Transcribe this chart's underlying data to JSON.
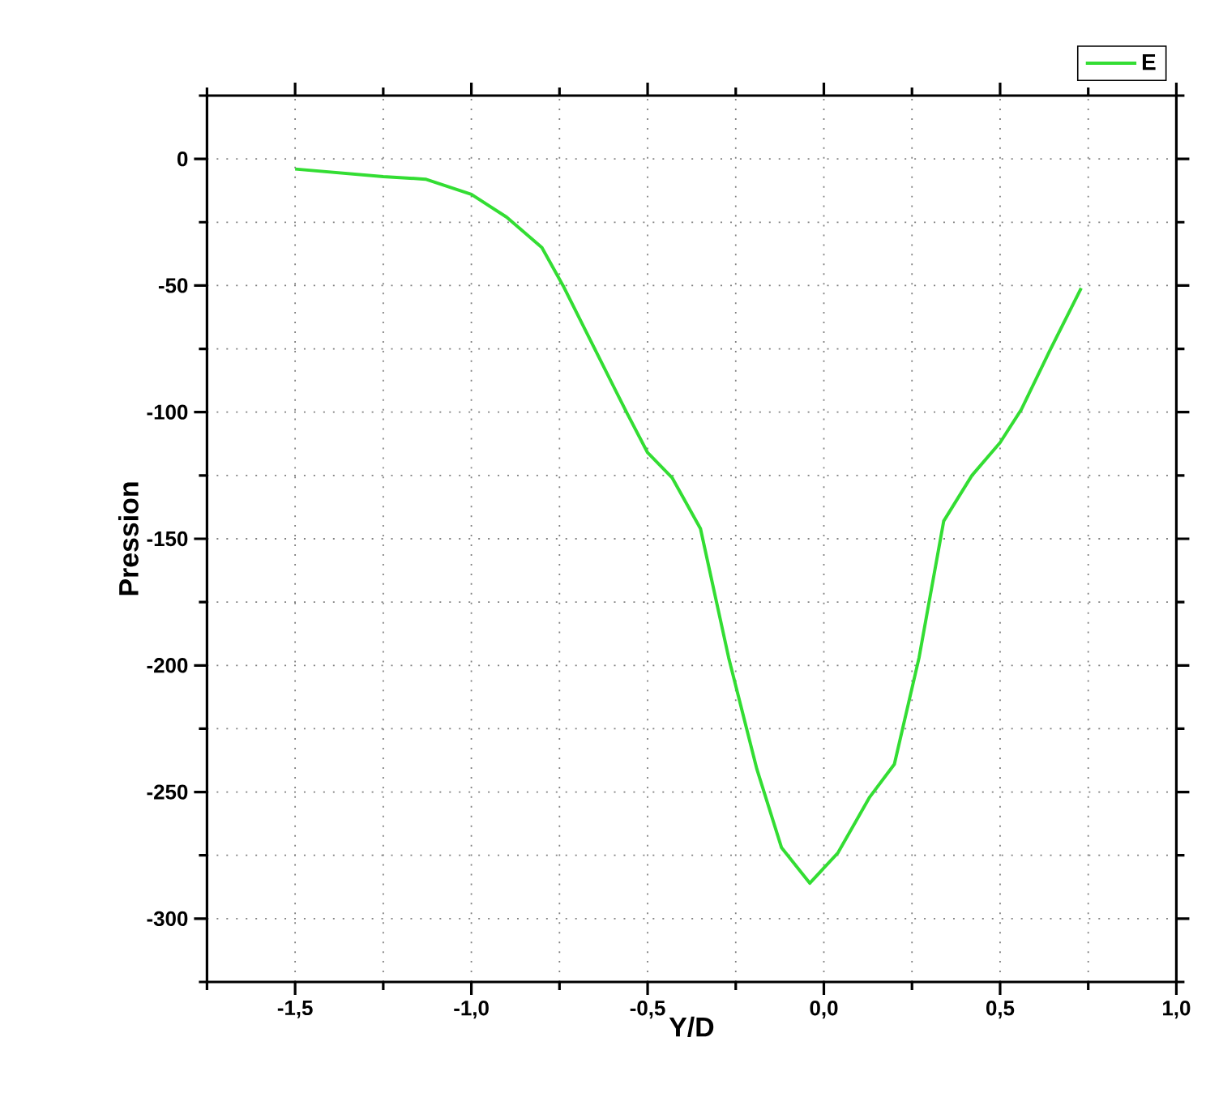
{
  "chart_data": {
    "type": "line",
    "xlabel": "Y/D",
    "ylabel": "Pression",
    "xlim": [
      -1.75,
      1.0
    ],
    "ylim": [
      -325,
      25
    ],
    "xticks": [
      {
        "value": -1.75,
        "label": null
      },
      {
        "value": -1.5,
        "label": "-1,5"
      },
      {
        "value": -1.25,
        "label": null
      },
      {
        "value": -1.0,
        "label": "-1,0"
      },
      {
        "value": -0.75,
        "label": null
      },
      {
        "value": -0.5,
        "label": "-0,5"
      },
      {
        "value": -0.25,
        "label": null
      },
      {
        "value": 0.0,
        "label": "0,0"
      },
      {
        "value": 0.25,
        "label": null
      },
      {
        "value": 0.5,
        "label": "0,5"
      },
      {
        "value": 0.75,
        "label": null
      },
      {
        "value": 1.0,
        "label": "1,0"
      }
    ],
    "yticks": [
      {
        "value": 25,
        "label": null
      },
      0,
      {
        "value": -25,
        "label": null
      },
      -50,
      {
        "value": -75,
        "label": null
      },
      -100,
      {
        "value": -125,
        "label": null
      },
      -150,
      {
        "value": -175,
        "label": null
      },
      -200,
      {
        "value": -225,
        "label": null
      },
      -250,
      {
        "value": -275,
        "label": null
      },
      -300,
      {
        "value": -325,
        "label": null
      }
    ],
    "grid": true,
    "legend": "top right",
    "series": [
      {
        "name": "E",
        "color": "#33dd33",
        "x": [
          -1.5,
          -1.25,
          -1.13,
          -1.0,
          -0.9,
          -0.8,
          -0.74,
          -0.65,
          -0.56,
          -0.5,
          -0.43,
          -0.35,
          -0.27,
          -0.19,
          -0.12,
          -0.04,
          0.04,
          0.13,
          0.2,
          0.27,
          0.34,
          0.42,
          0.5,
          0.56,
          0.64,
          0.73
        ],
        "values": [
          -4,
          -7,
          -8,
          -14,
          -23,
          -35,
          -50,
          -75,
          -100,
          -116,
          -126,
          -146,
          -197,
          -241,
          -272,
          -286,
          -274,
          -252,
          -239,
          -197,
          -143,
          -125,
          -112,
          -99,
          -76,
          -51
        ]
      }
    ]
  }
}
